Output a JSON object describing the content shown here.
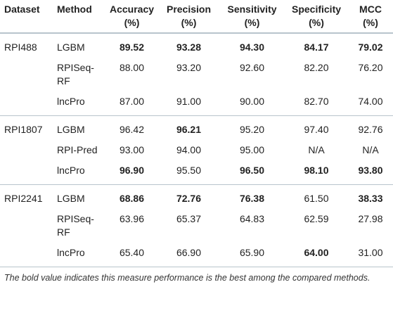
{
  "table": {
    "header": [
      "Dataset",
      "Method",
      "Accuracy (%)",
      "Precision (%)",
      "Sensitivity (%)",
      "Specificity (%)",
      "MCC (%)"
    ],
    "groups": [
      {
        "dataset": "RPI488",
        "rows": [
          {
            "method": "LGBM",
            "values": [
              "89.52",
              "93.28",
              "94.30",
              "84.17",
              "79.02"
            ],
            "bold": [
              0,
              1,
              2,
              3,
              4
            ]
          },
          {
            "method": "RPISeq-RF",
            "values": [
              "88.00",
              "93.20",
              "92.60",
              "82.20",
              "76.20"
            ],
            "bold": []
          },
          {
            "method": "lncPro",
            "values": [
              "87.00",
              "91.00",
              "90.00",
              "82.70",
              "74.00"
            ],
            "bold": []
          }
        ]
      },
      {
        "dataset": "RPI1807",
        "rows": [
          {
            "method": "LGBM",
            "values": [
              "96.42",
              "96.21",
              "95.20",
              "97.40",
              "92.76"
            ],
            "bold": [
              1
            ]
          },
          {
            "method": "RPI-Pred",
            "values": [
              "93.00",
              "94.00",
              "95.00",
              "N/A",
              "N/A"
            ],
            "bold": []
          },
          {
            "method": "lncPro",
            "values": [
              "96.90",
              "95.50",
              "96.50",
              "98.10",
              "93.80"
            ],
            "bold": [
              0,
              2,
              3,
              4
            ]
          }
        ]
      },
      {
        "dataset": "RPI2241",
        "rows": [
          {
            "method": "LGBM",
            "values": [
              "68.86",
              "72.76",
              "76.38",
              "61.50",
              "38.33"
            ],
            "bold": [
              0,
              1,
              2,
              4
            ]
          },
          {
            "method": "RPISeq-RF",
            "values": [
              "63.96",
              "65.37",
              "64.83",
              "62.59",
              "27.98"
            ],
            "bold": []
          },
          {
            "method": "lncPro",
            "values": [
              "65.40",
              "66.90",
              "65.90",
              "64.00",
              "31.00"
            ],
            "bold": [
              3
            ]
          }
        ]
      }
    ],
    "footnote": "The bold value indicates this measure performance is the best among the compared methods."
  }
}
